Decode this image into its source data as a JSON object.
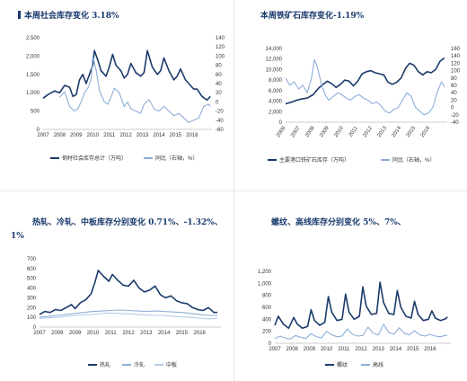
{
  "colors": {
    "dark": "#1b3a6b",
    "light": "#8eaed8",
    "lighter": "#b7cbe8",
    "title": "#1a3a6e"
  },
  "titles": {
    "tl": "本周社会库存变化 3.18%",
    "tr": "本周铁矿石库存变化-1.19%",
    "bl_line1": "热轧、冷轧、中板库存分别变化 0.71%、-1.32%、",
    "bl_line2": "1%",
    "br": "螺纹、高线库存分别变化 5%、7%、"
  },
  "chart_data": [
    {
      "type": "line",
      "x_ticks": [
        "2007",
        "2008",
        "2009",
        "2010",
        "2011",
        "2012",
        "2013",
        "2014",
        "2015",
        "2016"
      ],
      "y_ticks_left": [
        "0",
        "500",
        "1,000",
        "1,500",
        "2,000",
        "2,500"
      ],
      "y_ticks_right": [
        "-60",
        "-40",
        "-20",
        "0",
        "20",
        "40",
        "60",
        "80",
        "100",
        "120",
        "140"
      ],
      "ylim_left": [
        0,
        2500
      ],
      "ylim_right": [
        -60,
        140
      ],
      "series": [
        {
          "name": "钢材社会库存总计（万吨）",
          "axis": "left",
          "color": "#1b3a6b",
          "x": [
            2007.0,
            2007.3,
            2007.7,
            2008.0,
            2008.3,
            2008.6,
            2008.8,
            2009.0,
            2009.2,
            2009.4,
            2009.6,
            2009.8,
            2010.0,
            2010.1,
            2010.3,
            2010.5,
            2010.8,
            2011.0,
            2011.2,
            2011.4,
            2011.7,
            2011.9,
            2012.1,
            2012.3,
            2012.6,
            2012.9,
            2013.1,
            2013.3,
            2013.6,
            2013.9,
            2014.1,
            2014.3,
            2014.6,
            2014.9,
            2015.1,
            2015.3,
            2015.6,
            2015.9,
            2016.1,
            2016.3,
            2016.6,
            2016.9,
            2017.1
          ],
          "y": [
            850,
            950,
            1050,
            1000,
            1200,
            1150,
            900,
            950,
            1350,
            1500,
            1250,
            1500,
            1750,
            2150,
            1900,
            1600,
            1450,
            1700,
            2050,
            1750,
            1600,
            1400,
            1500,
            1800,
            1550,
            1450,
            1550,
            2150,
            1700,
            1500,
            1600,
            1950,
            1600,
            1350,
            1450,
            1650,
            1350,
            1200,
            1100,
            1100,
            900,
            800,
            900
          ]
        },
        {
          "name": "同比（右轴，%）",
          "axis": "right",
          "color": "#8eaed8",
          "x": [
            2008.0,
            2008.3,
            2008.6,
            2008.9,
            2009.1,
            2009.3,
            2009.5,
            2009.7,
            2009.9,
            2010.0,
            2010.2,
            2010.4,
            2010.7,
            2010.9,
            2011.1,
            2011.3,
            2011.6,
            2011.9,
            2012.1,
            2012.3,
            2012.6,
            2012.9,
            2013.1,
            2013.4,
            2013.7,
            2014.0,
            2014.3,
            2014.6,
            2014.9,
            2015.2,
            2015.5,
            2015.8,
            2016.1,
            2016.4,
            2016.7,
            2017.0,
            2017.1
          ],
          "y": [
            10,
            22,
            -10,
            -20,
            -15,
            0,
            20,
            30,
            50,
            100,
            70,
            25,
            0,
            -5,
            10,
            30,
            20,
            -10,
            0,
            -15,
            -20,
            -25,
            -5,
            5,
            -15,
            -20,
            -10,
            -20,
            -30,
            -25,
            -35,
            -45,
            -40,
            -35,
            -10,
            -5,
            -10
          ]
        }
      ]
    },
    {
      "type": "line",
      "x_ticks": [
        "2006",
        "2007",
        "2008",
        "2009",
        "2010",
        "2011",
        "2012",
        "2013",
        "2014",
        "2015",
        "2016"
      ],
      "y_ticks_left": [
        "0",
        "2,000",
        "4,000",
        "6,000",
        "8,000",
        "10,000",
        "12,000",
        "14,000"
      ],
      "y_ticks_right": [
        "-40",
        "-20",
        "0",
        "20",
        "40",
        "60",
        "80",
        "100",
        "120",
        "140",
        "160"
      ],
      "ylim_left": [
        0,
        14000
      ],
      "ylim_right": [
        -40,
        160
      ],
      "series": [
        {
          "name": "主要港口铁矿石库存（万吨）",
          "axis": "left",
          "color": "#1b3a6b",
          "x": [
            2006.0,
            2006.4,
            2006.8,
            2007.1,
            2007.5,
            2007.9,
            2008.3,
            2008.6,
            2008.9,
            2009.2,
            2009.5,
            2009.8,
            2010.1,
            2010.4,
            2010.7,
            2011.0,
            2011.3,
            2011.6,
            2011.9,
            2012.2,
            2012.5,
            2012.8,
            2013.1,
            2013.4,
            2013.7,
            2014.0,
            2014.3,
            2014.6,
            2014.9,
            2015.2,
            2015.5,
            2015.8,
            2016.1,
            2016.4,
            2016.7,
            2017.0
          ],
          "y": [
            3500,
            3800,
            4200,
            4400,
            4600,
            5200,
            6500,
            7200,
            7800,
            7300,
            6600,
            7200,
            8000,
            7800,
            6900,
            7800,
            9200,
            9600,
            9800,
            9400,
            9200,
            9000,
            7600,
            7200,
            7600,
            8400,
            10200,
            11200,
            10800,
            9600,
            9000,
            9600,
            9400,
            10000,
            11600,
            12200
          ]
        },
        {
          "name": "同比（右轴，%）",
          "axis": "right",
          "color": "#8eaed8",
          "x": [
            2006.0,
            2006.3,
            2006.6,
            2006.9,
            2007.2,
            2007.5,
            2007.8,
            2008.0,
            2008.2,
            2008.5,
            2008.8,
            2009.0,
            2009.3,
            2009.6,
            2009.9,
            2010.2,
            2010.5,
            2010.8,
            2011.1,
            2011.4,
            2011.7,
            2012.0,
            2012.3,
            2012.6,
            2012.9,
            2013.2,
            2013.5,
            2013.8,
            2014.1,
            2014.4,
            2014.7,
            2015.0,
            2015.3,
            2015.6,
            2015.9,
            2016.2,
            2016.5,
            2016.8,
            2017.0
          ],
          "y": [
            80,
            60,
            70,
            50,
            60,
            40,
            80,
            130,
            110,
            60,
            30,
            20,
            30,
            40,
            35,
            25,
            20,
            30,
            35,
            25,
            20,
            10,
            15,
            5,
            -10,
            -15,
            -5,
            0,
            20,
            40,
            30,
            0,
            -10,
            -20,
            -15,
            0,
            40,
            70,
            55
          ]
        }
      ]
    },
    {
      "type": "line",
      "x_ticks": [
        "2007",
        "2008",
        "2009",
        "2010",
        "2011",
        "2012",
        "2013",
        "2014",
        "2015",
        "2016"
      ],
      "y_ticks_left": [
        "0",
        "100",
        "200",
        "300",
        "400",
        "500",
        "600",
        "700"
      ],
      "ylim_left": [
        0,
        700
      ],
      "series": [
        {
          "name": "热轧",
          "color": "#1b3a6b",
          "x": [
            2007.0,
            2007.3,
            2007.6,
            2007.9,
            2008.2,
            2008.5,
            2008.8,
            2009.0,
            2009.3,
            2009.6,
            2009.9,
            2010.1,
            2010.3,
            2010.6,
            2010.9,
            2011.1,
            2011.4,
            2011.7,
            2012.0,
            2012.3,
            2012.6,
            2012.9,
            2013.2,
            2013.5,
            2013.8,
            2014.1,
            2014.4,
            2014.7,
            2015.0,
            2015.3,
            2015.6,
            2015.9,
            2016.2,
            2016.5,
            2016.8,
            2017.0
          ],
          "y": [
            130,
            160,
            150,
            180,
            170,
            200,
            230,
            190,
            250,
            280,
            340,
            450,
            580,
            520,
            470,
            540,
            480,
            430,
            420,
            480,
            400,
            360,
            380,
            420,
            330,
            300,
            320,
            270,
            250,
            240,
            200,
            180,
            170,
            200,
            150,
            150
          ]
        },
        {
          "name": "冷轧",
          "color": "#8eaed8",
          "x": [
            2007.0,
            2007.5,
            2008.0,
            2008.5,
            2009.0,
            2009.5,
            2010.0,
            2010.5,
            2011.0,
            2011.5,
            2012.0,
            2012.5,
            2013.0,
            2013.5,
            2014.0,
            2014.5,
            2015.0,
            2015.5,
            2016.0,
            2016.5,
            2017.0
          ],
          "y": [
            100,
            110,
            120,
            130,
            140,
            150,
            160,
            165,
            170,
            175,
            170,
            165,
            160,
            165,
            160,
            155,
            150,
            140,
            130,
            120,
            120
          ]
        },
        {
          "name": "中板",
          "color": "#b7cbe8",
          "x": [
            2007.0,
            2007.5,
            2008.0,
            2008.5,
            2009.0,
            2009.5,
            2010.0,
            2010.5,
            2011.0,
            2011.5,
            2012.0,
            2012.5,
            2013.0,
            2013.5,
            2014.0,
            2014.5,
            2015.0,
            2015.5,
            2016.0,
            2016.5,
            2017.0
          ],
          "y": [
            90,
            95,
            100,
            110,
            120,
            125,
            130,
            140,
            145,
            140,
            135,
            130,
            125,
            120,
            120,
            110,
            105,
            100,
            90,
            85,
            90
          ]
        }
      ]
    },
    {
      "type": "line",
      "x_ticks": [
        "2007",
        "2008",
        "2009",
        "2010",
        "2011",
        "2012",
        "2013",
        "2014",
        "2015",
        "2016"
      ],
      "y_ticks_left": [
        "0",
        "200",
        "400",
        "600",
        "800",
        "1,000",
        "1,200"
      ],
      "ylim_left": [
        0,
        1200
      ],
      "series": [
        {
          "name": "螺纹",
          "color": "#1b3a6b",
          "x": [
            2007.0,
            2007.2,
            2007.5,
            2007.8,
            2008.1,
            2008.3,
            2008.6,
            2008.9,
            2009.1,
            2009.3,
            2009.6,
            2009.9,
            2010.1,
            2010.3,
            2010.6,
            2010.9,
            2011.1,
            2011.3,
            2011.6,
            2011.9,
            2012.1,
            2012.3,
            2012.6,
            2012.9,
            2013.1,
            2013.3,
            2013.6,
            2013.9,
            2014.1,
            2014.3,
            2014.6,
            2014.9,
            2015.1,
            2015.3,
            2015.6,
            2015.9,
            2016.1,
            2016.3,
            2016.6,
            2016.9,
            2017.0
          ],
          "y": [
            300,
            450,
            320,
            250,
            430,
            320,
            250,
            280,
            560,
            380,
            300,
            350,
            780,
            520,
            380,
            400,
            820,
            520,
            400,
            450,
            940,
            620,
            480,
            500,
            1020,
            680,
            500,
            480,
            880,
            600,
            450,
            420,
            700,
            480,
            380,
            400,
            540,
            420,
            380,
            410,
            440
          ]
        },
        {
          "name": "高线",
          "color": "#8eaed8",
          "x": [
            2007.0,
            2007.3,
            2007.6,
            2007.9,
            2008.2,
            2008.5,
            2008.8,
            2009.1,
            2009.4,
            2009.7,
            2010.0,
            2010.3,
            2010.6,
            2010.9,
            2011.2,
            2011.5,
            2011.8,
            2012.1,
            2012.4,
            2012.7,
            2013.0,
            2013.3,
            2013.6,
            2013.9,
            2014.2,
            2014.5,
            2014.8,
            2015.1,
            2015.4,
            2015.7,
            2016.0,
            2016.3,
            2016.6,
            2017.0
          ],
          "y": [
            80,
            120,
            90,
            70,
            130,
            100,
            80,
            160,
            110,
            90,
            200,
            140,
            110,
            120,
            240,
            150,
            120,
            130,
            270,
            170,
            140,
            320,
            180,
            150,
            260,
            170,
            140,
            210,
            140,
            120,
            150,
            120,
            110,
            140
          ]
        }
      ]
    }
  ]
}
